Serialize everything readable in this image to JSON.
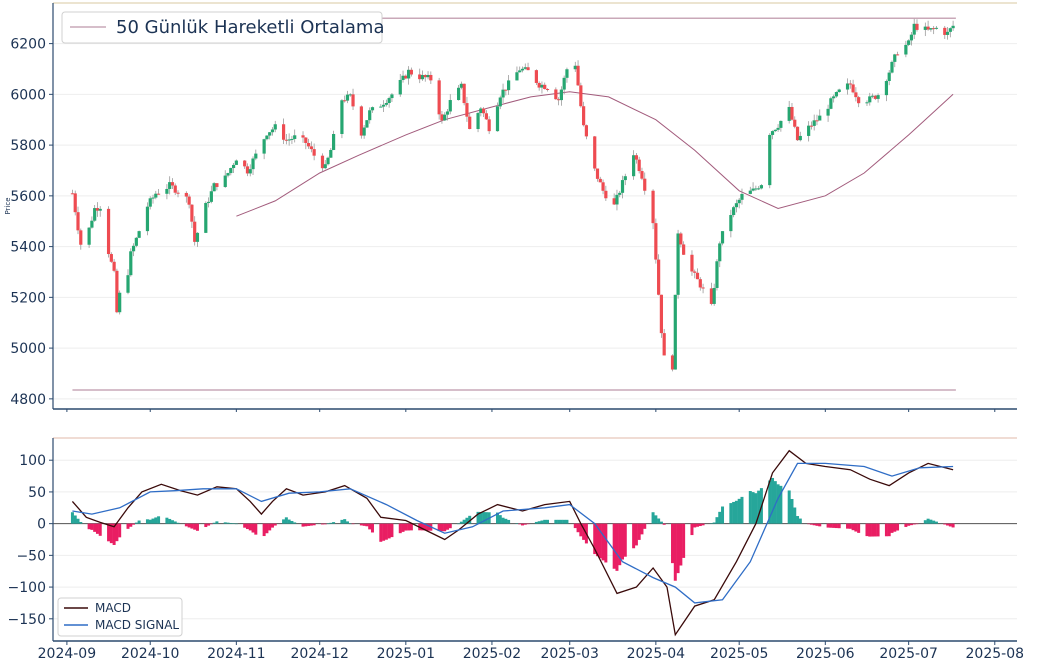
{
  "chart_data": [
    {
      "type": "candlestick",
      "ylabel": "Price",
      "ylim": [
        4760,
        6360
      ],
      "yticks": [
        4800,
        5000,
        5200,
        5400,
        5600,
        5800,
        6000,
        6200
      ],
      "ytick_labels": [
        "4800",
        "5000",
        "5200",
        "5400",
        "5600",
        "5800",
        "6000",
        "6200"
      ],
      "legend": {
        "label": "50 Günlük Hareketli Ortalama",
        "placement": "top-left"
      },
      "horizontal_lines": [
        6300,
        4835
      ],
      "colors": {
        "up": "#26a671",
        "down": "#ee4b51",
        "ma": "#a25b7c",
        "hline": "#c9a8b8"
      },
      "ohlc_close_path": [
        [
          "2024-09-03",
          5610
        ],
        [
          "2024-09-06",
          5410
        ],
        [
          "2024-09-09",
          5470
        ],
        [
          "2024-09-11",
          5550
        ],
        [
          "2024-09-13",
          5560
        ],
        [
          "2024-09-16",
          5380
        ],
        [
          "2024-09-18",
          5290
        ],
        [
          "2024-09-19",
          5140
        ],
        [
          "2024-09-20",
          5210
        ],
        [
          "2024-09-23",
          5300
        ],
        [
          "2024-09-24",
          5370
        ],
        [
          "2024-09-26",
          5430
        ],
        [
          "2024-09-30",
          5560
        ],
        [
          "2024-10-03",
          5610
        ],
        [
          "2024-10-08",
          5640
        ],
        [
          "2024-10-11",
          5620
        ],
        [
          "2024-10-15",
          5580
        ],
        [
          "2024-10-17",
          5420
        ],
        [
          "2024-10-21",
          5560
        ],
        [
          "2024-10-24",
          5640
        ],
        [
          "2024-10-28",
          5670
        ],
        [
          "2024-11-01",
          5750
        ],
        [
          "2024-11-05",
          5700
        ],
        [
          "2024-11-08",
          5760
        ],
        [
          "2024-11-12",
          5850
        ],
        [
          "2024-11-15",
          5870
        ],
        [
          "2024-11-19",
          5820
        ],
        [
          "2024-11-22",
          5830
        ],
        [
          "2024-11-26",
          5810
        ],
        [
          "2024-11-29",
          5760
        ],
        [
          "2024-12-03",
          5710
        ],
        [
          "2024-12-05",
          5780
        ],
        [
          "2024-12-09",
          5980
        ],
        [
          "2024-12-12",
          5990
        ],
        [
          "2024-12-16",
          5850
        ],
        [
          "2024-12-19",
          5930
        ],
        [
          "2024-12-23",
          5960
        ],
        [
          "2024-12-27",
          6000
        ],
        [
          "2025-01-02",
          6090
        ],
        [
          "2025-01-06",
          6070
        ],
        [
          "2025-01-10",
          6060
        ],
        [
          "2025-01-14",
          5890
        ],
        [
          "2025-01-17",
          5970
        ],
        [
          "2025-01-21",
          6030
        ],
        [
          "2025-01-24",
          5860
        ],
        [
          "2025-01-28",
          5950
        ],
        [
          "2025-01-31",
          5870
        ],
        [
          "2025-02-04",
          6000
        ],
        [
          "2025-02-07",
          6040
        ],
        [
          "2025-02-11",
          6100
        ],
        [
          "2025-02-14",
          6090
        ],
        [
          "2025-02-18",
          6040
        ],
        [
          "2025-02-21",
          6030
        ],
        [
          "2025-02-25",
          5980
        ],
        [
          "2025-02-28",
          6100
        ],
        [
          "2025-03-03",
          6120
        ],
        [
          "2025-03-06",
          5870
        ],
        [
          "2025-03-10",
          5700
        ],
        [
          "2025-03-13",
          5620
        ],
        [
          "2025-03-17",
          5560
        ],
        [
          "2025-03-20",
          5650
        ],
        [
          "2025-03-24",
          5770
        ],
        [
          "2025-03-27",
          5680
        ],
        [
          "2025-03-31",
          5500
        ],
        [
          "2025-04-03",
          5070
        ],
        [
          "2025-04-04",
          4960
        ],
        [
          "2025-04-07",
          4930
        ],
        [
          "2025-04-09",
          5460
        ],
        [
          "2025-04-11",
          5380
        ],
        [
          "2025-04-14",
          5300
        ],
        [
          "2025-04-17",
          5250
        ],
        [
          "2025-04-21",
          5160
        ],
        [
          "2025-04-24",
          5420
        ],
        [
          "2025-04-28",
          5530
        ],
        [
          "2025-05-02",
          5600
        ],
        [
          "2025-05-06",
          5620
        ],
        [
          "2025-05-09",
          5650
        ],
        [
          "2025-05-12",
          5850
        ],
        [
          "2025-05-15",
          5880
        ],
        [
          "2025-05-19",
          5940
        ],
        [
          "2025-05-22",
          5820
        ],
        [
          "2025-05-27",
          5880
        ],
        [
          "2025-05-30",
          5910
        ],
        [
          "2025-06-03",
          5970
        ],
        [
          "2025-06-06",
          6010
        ],
        [
          "2025-06-10",
          6040
        ],
        [
          "2025-06-13",
          5980
        ],
        [
          "2025-06-17",
          5980
        ],
        [
          "2025-06-20",
          6000
        ],
        [
          "2025-06-24",
          6090
        ],
        [
          "2025-06-27",
          6170
        ],
        [
          "2025-07-01",
          6200
        ],
        [
          "2025-07-03",
          6270
        ],
        [
          "2025-07-08",
          6250
        ],
        [
          "2025-07-11",
          6260
        ],
        [
          "2025-07-15",
          6240
        ],
        [
          "2025-07-17",
          6270
        ]
      ],
      "moving_average_path": [
        [
          "2024-11-01",
          5520
        ],
        [
          "2024-11-15",
          5580
        ],
        [
          "2024-12-01",
          5690
        ],
        [
          "2024-12-15",
          5760
        ],
        [
          "2025-01-01",
          5840
        ],
        [
          "2025-01-15",
          5900
        ],
        [
          "2025-02-01",
          5950
        ],
        [
          "2025-02-15",
          5990
        ],
        [
          "2025-03-01",
          6010
        ],
        [
          "2025-03-15",
          5990
        ],
        [
          "2025-04-01",
          5900
        ],
        [
          "2025-04-15",
          5780
        ],
        [
          "2025-05-01",
          5620
        ],
        [
          "2025-05-15",
          5550
        ],
        [
          "2025-06-01",
          5600
        ],
        [
          "2025-06-15",
          5690
        ],
        [
          "2025-07-01",
          5840
        ],
        [
          "2025-07-17",
          6000
        ]
      ]
    },
    {
      "type": "line",
      "ylim": [
        -185,
        135
      ],
      "yticks": [
        -150,
        -100,
        -50,
        0,
        50,
        100
      ],
      "ytick_labels": [
        "−150",
        "−100",
        "−50",
        "0",
        "50",
        "100"
      ],
      "legend_placement": "bottom-left",
      "series": [
        {
          "name": "MACD",
          "color": "#3a0a0a",
          "points": [
            [
              "2024-09-03",
              35
            ],
            [
              "2024-09-08",
              10
            ],
            [
              "2024-09-13",
              2
            ],
            [
              "2024-09-18",
              -5
            ],
            [
              "2024-09-23",
              25
            ],
            [
              "2024-09-28",
              50
            ],
            [
              "2024-10-05",
              62
            ],
            [
              "2024-10-12",
              52
            ],
            [
              "2024-10-18",
              45
            ],
            [
              "2024-10-25",
              58
            ],
            [
              "2024-11-01",
              55
            ],
            [
              "2024-11-06",
              35
            ],
            [
              "2024-11-10",
              15
            ],
            [
              "2024-11-14",
              35
            ],
            [
              "2024-11-19",
              55
            ],
            [
              "2024-11-25",
              45
            ],
            [
              "2024-12-03",
              50
            ],
            [
              "2024-12-10",
              60
            ],
            [
              "2024-12-18",
              40
            ],
            [
              "2024-12-23",
              10
            ],
            [
              "2025-01-01",
              5
            ],
            [
              "2025-01-08",
              -10
            ],
            [
              "2025-01-15",
              -25
            ],
            [
              "2025-01-20",
              -10
            ],
            [
              "2025-01-27",
              15
            ],
            [
              "2025-02-03",
              30
            ],
            [
              "2025-02-12",
              20
            ],
            [
              "2025-02-20",
              30
            ],
            [
              "2025-03-01",
              35
            ],
            [
              "2025-03-05",
              0
            ],
            [
              "2025-03-10",
              -40
            ],
            [
              "2025-03-18",
              -110
            ],
            [
              "2025-03-25",
              -100
            ],
            [
              "2025-03-31",
              -70
            ],
            [
              "2025-04-05",
              -100
            ],
            [
              "2025-04-08",
              -175
            ],
            [
              "2025-04-15",
              -130
            ],
            [
              "2025-04-22",
              -120
            ],
            [
              "2025-04-30",
              -60
            ],
            [
              "2025-05-07",
              0
            ],
            [
              "2025-05-13",
              80
            ],
            [
              "2025-05-19",
              115
            ],
            [
              "2025-05-25",
              95
            ],
            [
              "2025-06-01",
              90
            ],
            [
              "2025-06-10",
              85
            ],
            [
              "2025-06-17",
              70
            ],
            [
              "2025-06-24",
              60
            ],
            [
              "2025-07-01",
              80
            ],
            [
              "2025-07-08",
              95
            ],
            [
              "2025-07-17",
              85
            ]
          ]
        },
        {
          "name": "MACD SIGNAL",
          "color": "#2f6dc6",
          "points": [
            [
              "2024-09-03",
              20
            ],
            [
              "2024-09-10",
              15
            ],
            [
              "2024-09-20",
              25
            ],
            [
              "2024-10-01",
              50
            ],
            [
              "2024-10-10",
              52
            ],
            [
              "2024-10-20",
              55
            ],
            [
              "2024-11-01",
              55
            ],
            [
              "2024-11-10",
              35
            ],
            [
              "2024-11-20",
              48
            ],
            [
              "2024-12-01",
              50
            ],
            [
              "2024-12-12",
              55
            ],
            [
              "2024-12-25",
              30
            ],
            [
              "2025-01-05",
              5
            ],
            [
              "2025-01-15",
              -15
            ],
            [
              "2025-01-25",
              -5
            ],
            [
              "2025-02-05",
              20
            ],
            [
              "2025-02-20",
              25
            ],
            [
              "2025-03-01",
              30
            ],
            [
              "2025-03-10",
              0
            ],
            [
              "2025-03-20",
              -60
            ],
            [
              "2025-03-31",
              -85
            ],
            [
              "2025-04-08",
              -100
            ],
            [
              "2025-04-15",
              -125
            ],
            [
              "2025-04-25",
              -120
            ],
            [
              "2025-05-05",
              -60
            ],
            [
              "2025-05-15",
              40
            ],
            [
              "2025-05-22",
              95
            ],
            [
              "2025-06-01",
              95
            ],
            [
              "2025-06-15",
              90
            ],
            [
              "2025-06-25",
              75
            ],
            [
              "2025-07-05",
              88
            ],
            [
              "2025-07-17",
              90
            ]
          ]
        }
      ],
      "histogram_color_pos": "#26a69a",
      "histogram_color_neg": "#e91e63",
      "x_tick_labels": [
        "2024-09",
        "2024-10",
        "2024-11",
        "2024-12",
        "2025-01",
        "2025-02",
        "2025-03",
        "2025-04",
        "2025-05",
        "2025-06",
        "2025-07",
        "2025-08"
      ]
    }
  ]
}
